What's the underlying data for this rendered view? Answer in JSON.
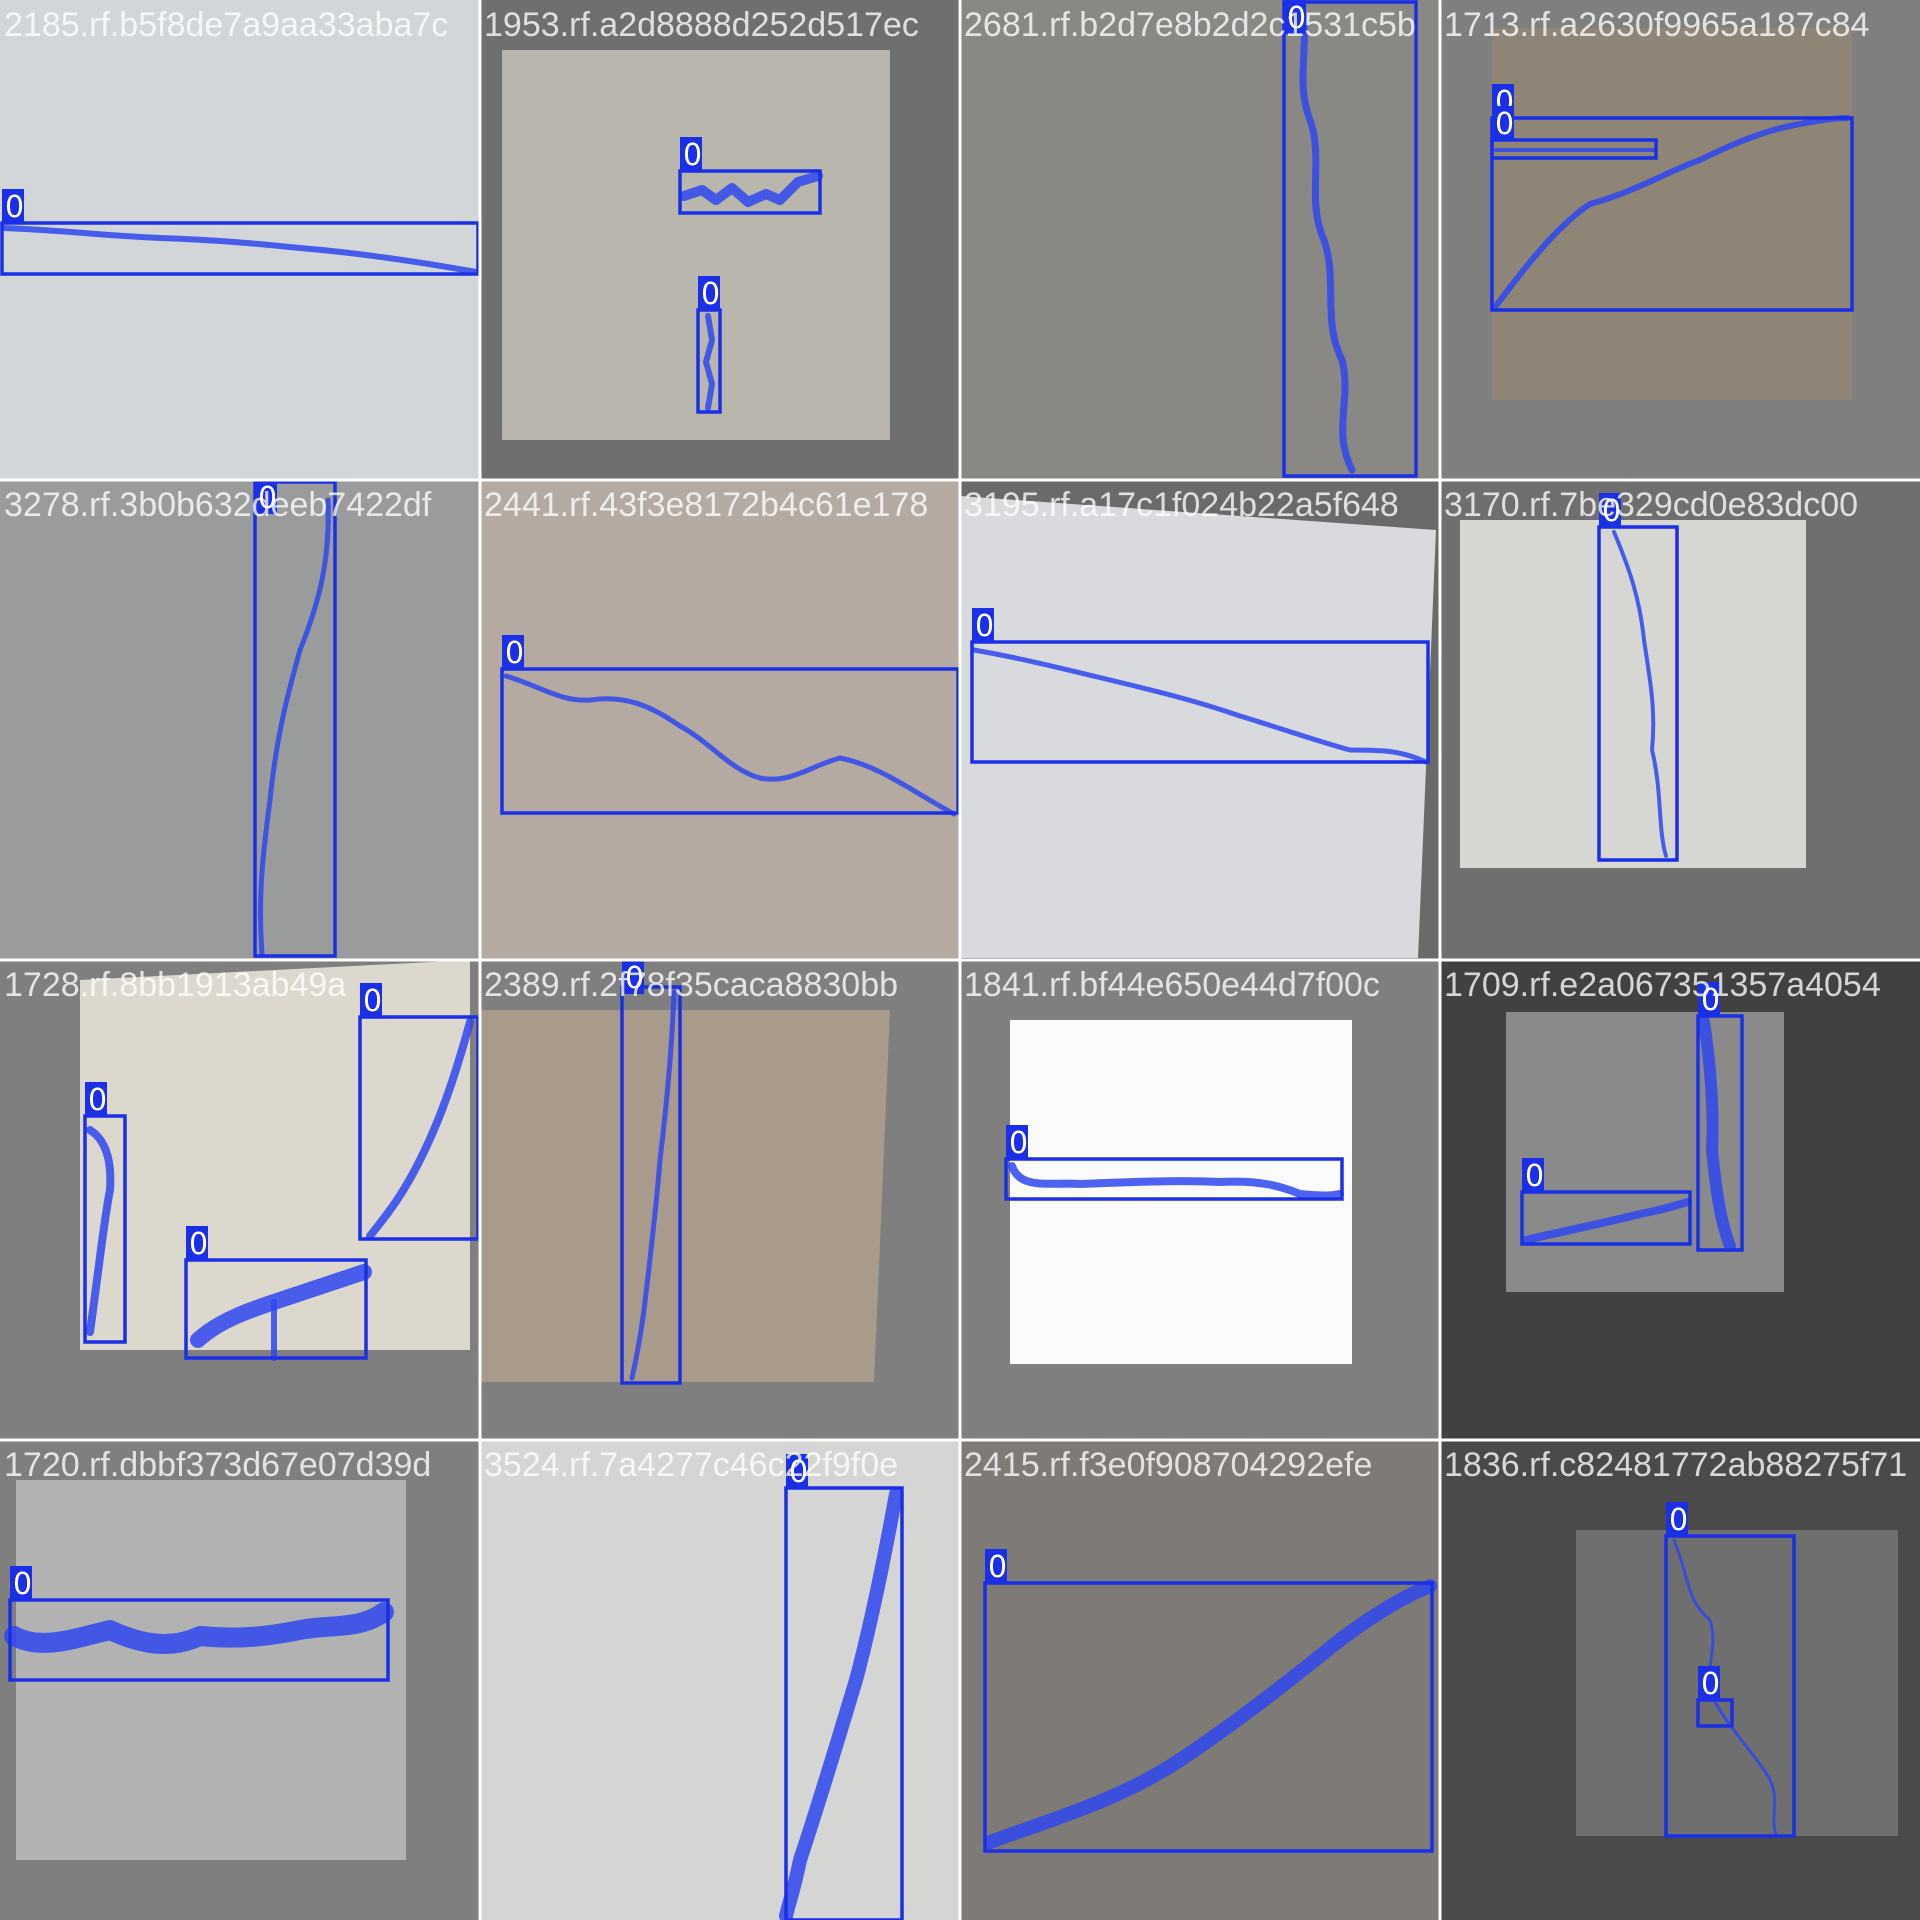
{
  "grid": {
    "tiles": [
      {
        "filename": "2185.rf.b5f8de7a9aa33aba7c",
        "surface": "#d2d6d8",
        "pad": "#7f7f7f",
        "detections": [
          {
            "label": "0"
          }
        ]
      },
      {
        "filename": "1953.rf.a2d8888d252d517ec",
        "surface": "#b9b6ad",
        "pad": "#6f6f6f",
        "detections": [
          {
            "label": "0"
          },
          {
            "label": "0"
          }
        ]
      },
      {
        "filename": "2681.rf.b2d7e8b2d2c1531c5b",
        "surface": "#8a8884",
        "pad": "#4a4a4a",
        "detections": [
          {
            "label": "0"
          }
        ]
      },
      {
        "filename": "1713.rf.a2630f9965a187c84",
        "surface": "#8f8577",
        "pad": "#7f7f7f",
        "detections": [
          {
            "label": "0"
          },
          {
            "label": "0"
          }
        ]
      },
      {
        "filename": "3278.rf.3b0b632deeb7422df",
        "surface": "#9a9b9b",
        "pad": "#7f7f7f",
        "detections": [
          {
            "label": "0"
          }
        ]
      },
      {
        "filename": "2441.rf.43f3e8172b4c61e178",
        "surface": "#b4aaa1",
        "pad": "#7f7f7f",
        "detections": [
          {
            "label": "0"
          }
        ]
      },
      {
        "filename": "3195.rf.a17c1f024b22a5f648",
        "surface": "#d8dadd",
        "pad": "#6a6a6a",
        "detections": [
          {
            "label": "0"
          }
        ]
      },
      {
        "filename": "3170.rf.7be329cd0e83dc00",
        "surface": "#d6d6d3",
        "pad": "#6f6f6f",
        "detections": [
          {
            "label": "0"
          }
        ]
      },
      {
        "filename": "1728.rf.8bb1913ab49a",
        "surface": "#dcd8ce",
        "pad": "#7f7f7f",
        "detections": [
          {
            "label": "0"
          },
          {
            "label": "0"
          },
          {
            "label": "0"
          }
        ]
      },
      {
        "filename": "2389.rf.2f78f35caca8830bb",
        "surface": "#a89b8b",
        "pad": "#7f7f7f",
        "detections": [
          {
            "label": "0"
          }
        ]
      },
      {
        "filename": "1841.rf.bf44e650e44d7f00c",
        "surface": "#fbfbfb",
        "pad": "#7f7f7f",
        "detections": [
          {
            "label": "0"
          }
        ]
      },
      {
        "filename": "1709.rf.e2a067351357a4054",
        "surface": "#8a8a8a",
        "pad": "#414141",
        "detections": [
          {
            "label": "0"
          },
          {
            "label": "0"
          }
        ]
      },
      {
        "filename": "1720.rf.dbbf373d67e07d39d",
        "surface": "#b2b2b2",
        "pad": "#7f7f7f",
        "detections": [
          {
            "label": "0"
          }
        ]
      },
      {
        "filename": "3524.rf.7a4277c46c22f9f0e",
        "surface": "#d5d5d3",
        "pad": "#7f7f7f",
        "detections": [
          {
            "label": "0"
          }
        ]
      },
      {
        "filename": "2415.rf.f3e0f908704292efe",
        "surface": "#7e7a76",
        "pad": "#7f7f7f",
        "detections": [
          {
            "label": "0"
          }
        ]
      },
      {
        "filename": "1836.rf.c82481772ab88275f71",
        "surface": "#6f6f6f",
        "pad": "#4a4a4a",
        "detections": [
          {
            "label": "0"
          },
          {
            "label": "0"
          }
        ]
      }
    ]
  }
}
